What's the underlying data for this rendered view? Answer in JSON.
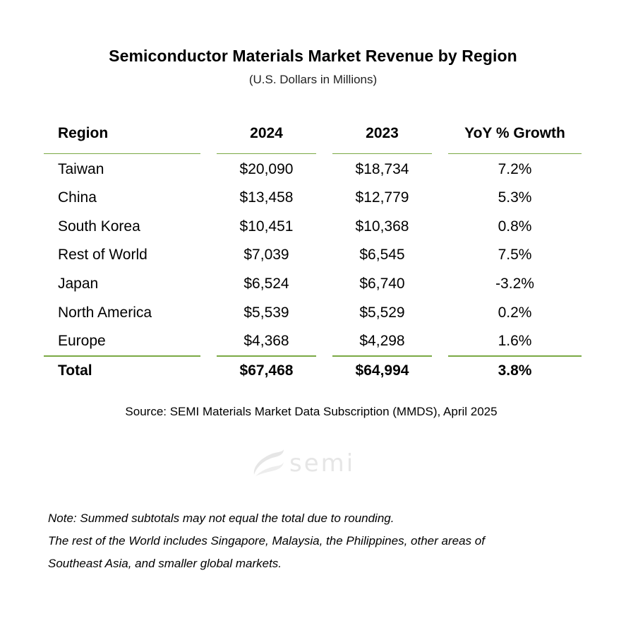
{
  "title": "Semiconductor Materials Market Revenue by Region",
  "subtitle": "(U.S. Dollars in Millions)",
  "columns": {
    "region": "Region",
    "y2024": "2024",
    "y2023": "2023",
    "yoy": "YoY % Growth"
  },
  "rows": [
    {
      "region": "Taiwan",
      "y2024": "$20,090",
      "y2023": "$18,734",
      "yoy": "7.2%"
    },
    {
      "region": "China",
      "y2024": "$13,458",
      "y2023": "$12,779",
      "yoy": "5.3%"
    },
    {
      "region": "South Korea",
      "y2024": "$10,451",
      "y2023": "$10,368",
      "yoy": "0.8%"
    },
    {
      "region": "Rest of World",
      "y2024": "$7,039",
      "y2023": "$6,545",
      "yoy": "7.5%"
    },
    {
      "region": "Japan",
      "y2024": "$6,524",
      "y2023": "$6,740",
      "yoy": "-3.2%"
    },
    {
      "region": "North America",
      "y2024": "$5,539",
      "y2023": "$5,529",
      "yoy": "0.2%"
    },
    {
      "region": "Europe",
      "y2024": "$4,368",
      "y2023": "$4,298",
      "yoy": "1.6%"
    }
  ],
  "total": {
    "region": "Total",
    "y2024": "$67,468",
    "y2023": "$64,994",
    "yoy": "3.8%"
  },
  "source": "Source: SEMI Materials Market Data Subscription (MMDS), April 2025",
  "logo": {
    "text": "semi",
    "icon": "semi-swoosh-logo"
  },
  "notes": [
    "Note: Summed subtotals may not equal the total due to rounding.",
    "The rest of the World includes Singapore, Malaysia, the Philippines, other areas of",
    "Southeast Asia, and smaller global markets."
  ],
  "colors": {
    "rule": "#7aa944",
    "logo": "#e6e6e6"
  }
}
